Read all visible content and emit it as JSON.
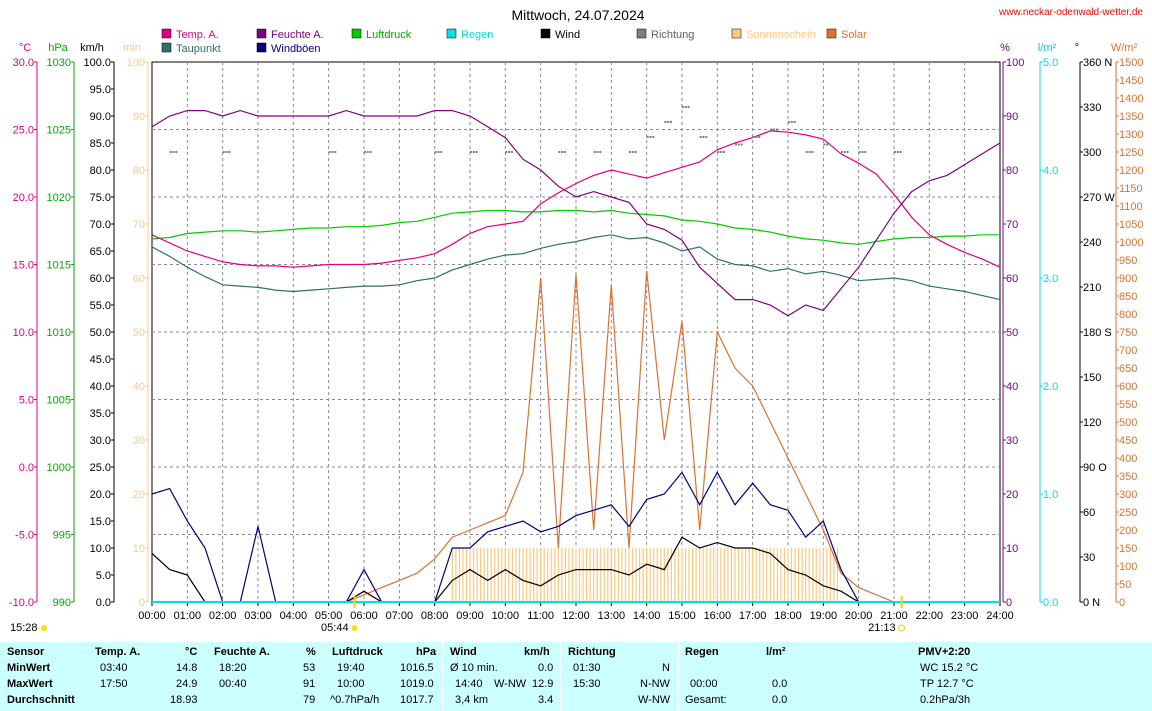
{
  "header": {
    "title": "Mittwoch, 24.07.2024",
    "site": "www.neckar-odenwald-wetter.de"
  },
  "units": {
    "left": [
      "°C",
      "hPa",
      "km/h",
      "min"
    ],
    "right": [
      "%",
      "l/m²",
      "°",
      "W/m²"
    ]
  },
  "legend": [
    {
      "label": "Temp. A.",
      "color": "#e0007f"
    },
    {
      "label": "Taupunkt",
      "color": "#2f6f6f"
    },
    {
      "label": "Feuchte A.",
      "color": "#800080"
    },
    {
      "label": "Windböen",
      "color": "#000080"
    },
    {
      "label": "Luftdruck",
      "color": "#00cc00"
    },
    {
      "label": "Regen",
      "color": "#00e0e0"
    },
    {
      "label": "Wind",
      "color": "#000000"
    },
    {
      "label": "Richtung",
      "color": "#808080"
    },
    {
      "label": "Sonnenschein",
      "color": "#ffc880"
    },
    {
      "label": "Solar",
      "color": "#e07030"
    }
  ],
  "axes": {
    "temp": [
      "30.0",
      "25.0",
      "20.0",
      "15.0",
      "10.0",
      "5.0",
      "0.0",
      "-5.0",
      "-10.0"
    ],
    "press": [
      "1030",
      "1025",
      "1020",
      "1015",
      "1010",
      "1005",
      "1000",
      "995",
      "990"
    ],
    "wind": [
      "100.0",
      "95.0",
      "90.0",
      "85.0",
      "80.0",
      "75.0",
      "70.0",
      "65.0",
      "60.0",
      "55.0",
      "50.0",
      "45.0",
      "40.0",
      "35.0",
      "30.0",
      "25.0",
      "20.0",
      "15.0",
      "10.0",
      "5.0",
      "0.0"
    ],
    "sun": [
      "100",
      "90",
      "80",
      "70",
      "60",
      "50",
      "40",
      "30",
      "20",
      "10",
      "0"
    ],
    "hum": [
      "100",
      "90",
      "80",
      "70",
      "60",
      "50",
      "40",
      "30",
      "20",
      "10",
      "0"
    ],
    "rain": [
      "5.0",
      "4.0",
      "3.0",
      "2.0",
      "1.0",
      "0.0"
    ],
    "dir": [
      "360 N",
      "330",
      "300",
      "270 W",
      "240",
      "210",
      "180 S",
      "150",
      "120",
      "90 O",
      "60",
      "30",
      "0 N"
    ],
    "solar": [
      "1500",
      "1450",
      "1400",
      "1350",
      "1300",
      "1250",
      "1200",
      "1150",
      "1100",
      "1050",
      "1000",
      "950",
      "900",
      "850",
      "800",
      "750",
      "700",
      "650",
      "600",
      "550",
      "500",
      "450",
      "400",
      "350",
      "300",
      "250",
      "200",
      "150",
      "100",
      "50",
      "0"
    ],
    "hours": [
      "00:00",
      "01:00",
      "02:00",
      "03:00",
      "04:00",
      "05:00",
      "06:00",
      "07:00",
      "08:00",
      "09:00",
      "10:00",
      "11:00",
      "12:00",
      "13:00",
      "14:00",
      "15:00",
      "16:00",
      "17:00",
      "18:00",
      "19:00",
      "20:00",
      "21:00",
      "22:00",
      "23:00",
      "24:00"
    ]
  },
  "sun_events": {
    "moonrise": "15:28",
    "sunrise": "05:44",
    "sunset": "21:13"
  },
  "stats": {
    "sensor": {
      "header": "Sensor",
      "rows": [
        "MinWert",
        "MaxWert",
        "Durchschnitt"
      ]
    },
    "temp": {
      "header": "Temp. A.",
      "unit": "°C",
      "min_time": "03:40",
      "min": "14.8",
      "max_time": "17:50",
      "max": "24.9",
      "avg": "18.93"
    },
    "hum": {
      "header": "Feuchte A.",
      "unit": "%",
      "min_time": "18:20",
      "min": "53",
      "max_time": "00:40",
      "max": "91",
      "avg": "79"
    },
    "press": {
      "header": "Luftdruck",
      "unit": "hPa",
      "min_time": "19:40",
      "min": "1016.5",
      "max_time": "10:00",
      "max": "1019.0",
      "trend": "^0.7hPa/h",
      "avg": "1017.7"
    },
    "wind": {
      "header": "Wind",
      "unit": "km/h",
      "r1_label": "Ø 10 min.",
      "r1_val": "0.0",
      "r2_time": "14:40",
      "r2_dir": "W-NW",
      "r2_val": "12.9",
      "r3_label": "3,4 km",
      "r3_val": "3.4"
    },
    "dir": {
      "header": "Richtung",
      "r1_time": "01:30",
      "r1_val": "N",
      "r2_time": "15:30",
      "r2_val": "N-NW",
      "r3_val": "W-NW"
    },
    "rain": {
      "header": "Regen",
      "unit": "l/m²",
      "r2_time": "00:00",
      "r2_val": "0.0",
      "r3_label": "Gesamt:",
      "r3_val": "0.0"
    },
    "pmv": {
      "header": "PMV+2:20",
      "l1": "WC 15.2 °C",
      "l2": "TP 12.7 °C",
      "l3": "0.2hPa/3h"
    }
  },
  "chart_data": {
    "type": "line",
    "title": "Mittwoch, 24.07.2024",
    "xlim": [
      0,
      24
    ],
    "ylim": {
      "temp_c": [
        -10,
        30
      ],
      "pressure_hpa": [
        990,
        1030
      ],
      "wind_kmh": [
        0,
        100
      ],
      "sunshine_min": [
        0,
        100
      ],
      "humidity_pct": [
        0,
        100
      ],
      "rain_lm2": [
        0,
        5
      ],
      "direction_deg": [
        0,
        360
      ],
      "solar_wm2": [
        0,
        1500
      ]
    },
    "grid": true,
    "series": [
      {
        "name": "Temp. A.",
        "unit": "°C",
        "color": "#e0007f",
        "x": [
          0,
          0.5,
          1,
          1.5,
          2,
          2.5,
          3,
          3.5,
          4,
          4.5,
          5,
          5.5,
          6,
          6.5,
          7,
          7.5,
          8,
          8.5,
          9,
          9.5,
          10,
          10.5,
          11,
          11.5,
          12,
          12.5,
          13,
          13.5,
          14,
          14.5,
          15,
          15.5,
          16,
          16.5,
          17,
          17.5,
          18,
          18.5,
          19,
          19.5,
          20,
          20.5,
          21,
          21.5,
          22,
          22.5,
          23,
          23.5,
          24
        ],
        "y": [
          17.2,
          16.6,
          16.0,
          15.6,
          15.2,
          15.0,
          14.9,
          14.9,
          14.8,
          14.9,
          15.0,
          15.0,
          15.0,
          15.1,
          15.3,
          15.5,
          15.8,
          16.5,
          17.3,
          17.8,
          18.0,
          18.2,
          19.5,
          20.3,
          21.0,
          21.6,
          22.0,
          21.7,
          21.4,
          21.8,
          22.2,
          22.6,
          23.5,
          24.0,
          24.4,
          24.9,
          24.8,
          24.6,
          24.3,
          23.2,
          22.5,
          21.7,
          20.2,
          18.5,
          17.2,
          16.5,
          15.9,
          15.4,
          14.8
        ]
      },
      {
        "name": "Taupunkt",
        "unit": "°C",
        "color": "#2f6f6f",
        "x": [
          0,
          0.5,
          1,
          1.5,
          2,
          2.5,
          3,
          3.5,
          4,
          4.5,
          5,
          5.5,
          6,
          6.5,
          7,
          7.5,
          8,
          8.5,
          9,
          9.5,
          10,
          10.5,
          11,
          11.5,
          12,
          12.5,
          13,
          13.5,
          14,
          14.5,
          15,
          15.5,
          16,
          16.5,
          17,
          17.5,
          18,
          18.5,
          19,
          19.5,
          20,
          20.5,
          21,
          21.5,
          22,
          22.5,
          23,
          23.5,
          24
        ],
        "y": [
          16.3,
          15.6,
          14.8,
          14.1,
          13.5,
          13.4,
          13.3,
          13.1,
          13.0,
          13.1,
          13.2,
          13.3,
          13.4,
          13.4,
          13.5,
          13.8,
          14.0,
          14.6,
          15.0,
          15.4,
          15.7,
          15.8,
          16.2,
          16.5,
          16.7,
          17.0,
          17.2,
          16.9,
          17.0,
          16.6,
          16.0,
          16.3,
          15.4,
          15.0,
          14.9,
          14.5,
          14.7,
          14.3,
          14.5,
          14.2,
          13.8,
          13.9,
          14.0,
          13.8,
          13.4,
          13.2,
          13.0,
          12.7,
          12.4
        ]
      },
      {
        "name": "Feuchte A.",
        "unit": "%",
        "color": "#800080",
        "x": [
          0,
          0.5,
          1,
          1.5,
          2,
          2.5,
          3,
          3.5,
          4,
          4.5,
          5,
          5.5,
          6,
          6.5,
          7,
          7.5,
          8,
          8.5,
          9,
          9.5,
          10,
          10.5,
          11,
          11.5,
          12,
          12.5,
          13,
          13.5,
          14,
          14.5,
          15,
          15.5,
          16,
          16.5,
          17,
          17.5,
          18,
          18.5,
          19,
          19.5,
          20,
          20.5,
          21,
          21.5,
          22,
          22.5,
          23,
          23.5,
          24
        ],
        "y": [
          88,
          90,
          91,
          91,
          90,
          91,
          90,
          90,
          90,
          90,
          90,
          91,
          90,
          90,
          90,
          90,
          91,
          91,
          90,
          88,
          86,
          82,
          80,
          77,
          75,
          76,
          75,
          74,
          70,
          69,
          67,
          62,
          59,
          56,
          56,
          55,
          53,
          55,
          54,
          58,
          62,
          67,
          72,
          76,
          78,
          79,
          81,
          83,
          85
        ]
      },
      {
        "name": "Luftdruck",
        "unit": "hPa",
        "color": "#00cc00",
        "x": [
          0,
          0.5,
          1,
          1.5,
          2,
          2.5,
          3,
          3.5,
          4,
          4.5,
          5,
          5.5,
          6,
          6.5,
          7,
          7.5,
          8,
          8.5,
          9,
          9.5,
          10,
          10.5,
          11,
          11.5,
          12,
          12.5,
          13,
          13.5,
          14,
          14.5,
          15,
          15.5,
          16,
          16.5,
          17,
          17.5,
          18,
          18.5,
          19,
          19.5,
          20,
          20.5,
          21,
          21.5,
          22,
          22.5,
          23,
          23.5,
          24
        ],
        "y": [
          1016.9,
          1017.0,
          1017.3,
          1017.4,
          1017.5,
          1017.5,
          1017.4,
          1017.5,
          1017.6,
          1017.7,
          1017.7,
          1017.8,
          1017.8,
          1017.9,
          1018.1,
          1018.2,
          1018.5,
          1018.8,
          1018.9,
          1019.0,
          1019.0,
          1018.9,
          1018.9,
          1019.0,
          1019.0,
          1018.9,
          1019.0,
          1018.8,
          1018.7,
          1018.6,
          1018.3,
          1018.2,
          1018.0,
          1017.7,
          1017.6,
          1017.4,
          1017.1,
          1016.9,
          1016.8,
          1016.6,
          1016.5,
          1016.7,
          1016.9,
          1017.0,
          1017.0,
          1017.1,
          1017.1,
          1017.2,
          1017.2
        ]
      },
      {
        "name": "Wind",
        "unit": "km/h",
        "color": "#000000",
        "x": [
          0,
          0.5,
          1,
          1.5,
          2,
          2.5,
          3,
          3.5,
          4,
          4.5,
          5,
          5.5,
          6,
          6.5,
          7,
          7.5,
          8,
          8.5,
          9,
          9.5,
          10,
          10.5,
          11,
          11.5,
          12,
          12.5,
          13,
          13.5,
          14,
          14.5,
          15,
          15.5,
          16,
          16.5,
          17,
          17.5,
          18,
          18.5,
          19,
          19.5,
          20,
          20.5,
          21,
          21.5,
          22,
          22.5,
          23,
          23.5,
          24
        ],
        "y": [
          9,
          6,
          5,
          0,
          0,
          0,
          0,
          0,
          0,
          0,
          0,
          0,
          2,
          0,
          0,
          0,
          0,
          4,
          6,
          4,
          6,
          4,
          3,
          5,
          6,
          6,
          6,
          5,
          7,
          6,
          12,
          10,
          11,
          10,
          10,
          9,
          6,
          5,
          3,
          2,
          0,
          0,
          0,
          0,
          0,
          0,
          0,
          0,
          0
        ]
      },
      {
        "name": "Windböen",
        "unit": "km/h",
        "color": "#000080",
        "x": [
          0,
          0.5,
          1,
          1.5,
          2,
          2.5,
          3,
          3.5,
          4,
          4.5,
          5,
          5.5,
          6,
          6.5,
          7,
          7.5,
          8,
          8.5,
          9,
          9.5,
          10,
          10.5,
          11,
          11.5,
          12,
          12.5,
          13,
          13.5,
          14,
          14.5,
          15,
          15.5,
          16,
          16.5,
          17,
          17.5,
          18,
          18.5,
          19,
          19.5,
          20,
          20.5,
          21,
          21.5,
          22,
          22.5,
          23,
          23.5,
          24
        ],
        "y": [
          20,
          21,
          15,
          10,
          0,
          0,
          14,
          0,
          0,
          0,
          0,
          0,
          6,
          0,
          0,
          0,
          0,
          10,
          10,
          13,
          14,
          15,
          13,
          14,
          16,
          17,
          18,
          14,
          19,
          20,
          24,
          18,
          24,
          18,
          22,
          18,
          17,
          12,
          15,
          6,
          0,
          0,
          0,
          0,
          0,
          0,
          0,
          0,
          0
        ]
      },
      {
        "name": "Solar",
        "unit": "W/m²",
        "color": "#e07030",
        "x": [
          0,
          0.5,
          1,
          1.5,
          2,
          2.5,
          3,
          3.5,
          4,
          4.5,
          5,
          5.5,
          6,
          6.5,
          7,
          7.5,
          8,
          8.5,
          9,
          9.5,
          10,
          10.5,
          11,
          11.5,
          12,
          12.5,
          13,
          13.5,
          14,
          14.5,
          15,
          15.5,
          16,
          16.5,
          17,
          17.5,
          18,
          18.5,
          19,
          19.5,
          20,
          20.5,
          21,
          21.5,
          22,
          22.5,
          23,
          23.5,
          24
        ],
        "y": [
          0,
          0,
          0,
          0,
          0,
          0,
          0,
          0,
          0,
          0,
          0,
          0,
          20,
          40,
          60,
          80,
          120,
          180,
          200,
          220,
          240,
          360,
          900,
          150,
          910,
          200,
          880,
          150,
          920,
          450,
          780,
          200,
          750,
          650,
          600,
          500,
          400,
          300,
          200,
          80,
          40,
          20,
          0,
          0,
          0,
          0,
          0,
          0,
          0
        ]
      },
      {
        "name": "Sonnenschein",
        "unit": "min",
        "color": "#ffc880",
        "x": [
          8.5,
          9,
          9.5,
          10,
          10.5,
          11,
          11.5,
          12,
          12.5,
          13,
          13.5,
          14,
          14.5,
          15,
          15.5,
          16,
          16.5,
          17,
          17.5,
          18,
          18.5,
          19
        ],
        "y": [
          10,
          10,
          10,
          10,
          10,
          10,
          10,
          10,
          10,
          10,
          10,
          10,
          10,
          10,
          10,
          10,
          10,
          10,
          10,
          10,
          10,
          10
        ]
      },
      {
        "name": "Richtung",
        "unit": "°",
        "color": "#808080",
        "x": [
          0.5,
          2,
          5,
          6,
          8,
          9,
          10,
          11.5,
          12.5,
          13.5,
          14,
          14.5,
          15,
          15.5,
          16,
          16.5,
          17,
          17.5,
          18,
          18.5,
          19,
          19.5,
          20,
          21
        ],
        "y": [
          300,
          300,
          300,
          300,
          300,
          300,
          300,
          300,
          300,
          300,
          310,
          320,
          330,
          310,
          300,
          305,
          310,
          315,
          320,
          300,
          305,
          300,
          300,
          300
        ]
      },
      {
        "name": "Regen",
        "unit": "l/m²",
        "color": "#00e0e0",
        "x": [
          0,
          24
        ],
        "y": [
          0,
          0
        ]
      }
    ]
  }
}
